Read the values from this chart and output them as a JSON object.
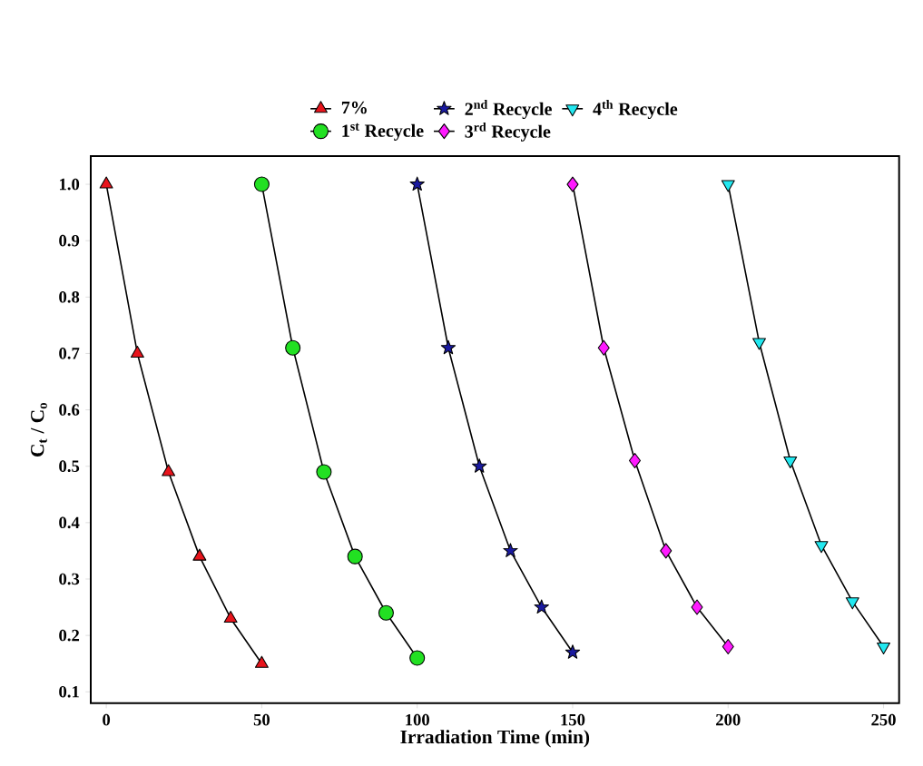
{
  "chart_data": {
    "type": "line",
    "xlabel": "Irradiation Time (min)",
    "ylabel": "C$_{t}$ / C$_{o}$",
    "xlim": [
      -5,
      255
    ],
    "ylim": [
      0.08,
      1.05
    ],
    "xticks": [
      0,
      50,
      100,
      150,
      200,
      250
    ],
    "yticks": [
      0.1,
      0.2,
      0.3,
      0.4,
      0.5,
      0.6,
      0.7,
      0.8,
      0.9,
      {
        "value": 1.0,
        "label": "1.0"
      }
    ],
    "grid": false,
    "legend": "top",
    "line_style": "solid",
    "series": [
      {
        "name": "7%",
        "color": "#e8141c",
        "marker": "triangle",
        "x": [
          0,
          10,
          20,
          30,
          40,
          50
        ],
        "values": [
          1.0,
          0.7,
          0.49,
          0.34,
          0.23,
          0.15
        ]
      },
      {
        "name": "1$^{st}$ Recycle",
        "color": "#22e022",
        "marker": "circle",
        "x": [
          50,
          60,
          70,
          80,
          90,
          100
        ],
        "values": [
          1.0,
          0.71,
          0.49,
          0.34,
          0.24,
          0.16
        ]
      },
      {
        "name": "2$^{nd}$ Recycle",
        "color": "#1a1aa0",
        "marker": "star",
        "x": [
          100,
          110,
          120,
          130,
          140,
          150
        ],
        "values": [
          1.0,
          0.71,
          0.5,
          0.35,
          0.25,
          0.17
        ]
      },
      {
        "name": "3$^{rd}$ Recycle",
        "color": "#ff1aff",
        "marker": "diamond",
        "x": [
          150,
          160,
          170,
          180,
          190,
          200
        ],
        "values": [
          1.0,
          0.71,
          0.51,
          0.35,
          0.25,
          0.18
        ]
      },
      {
        "name": "4$^{th}$ Recycle",
        "color": "#22e8f0",
        "marker": "triangle_down",
        "x": [
          200,
          210,
          220,
          230,
          240,
          250
        ],
        "values": [
          1.0,
          0.72,
          0.51,
          0.36,
          0.26,
          0.18
        ]
      }
    ]
  }
}
